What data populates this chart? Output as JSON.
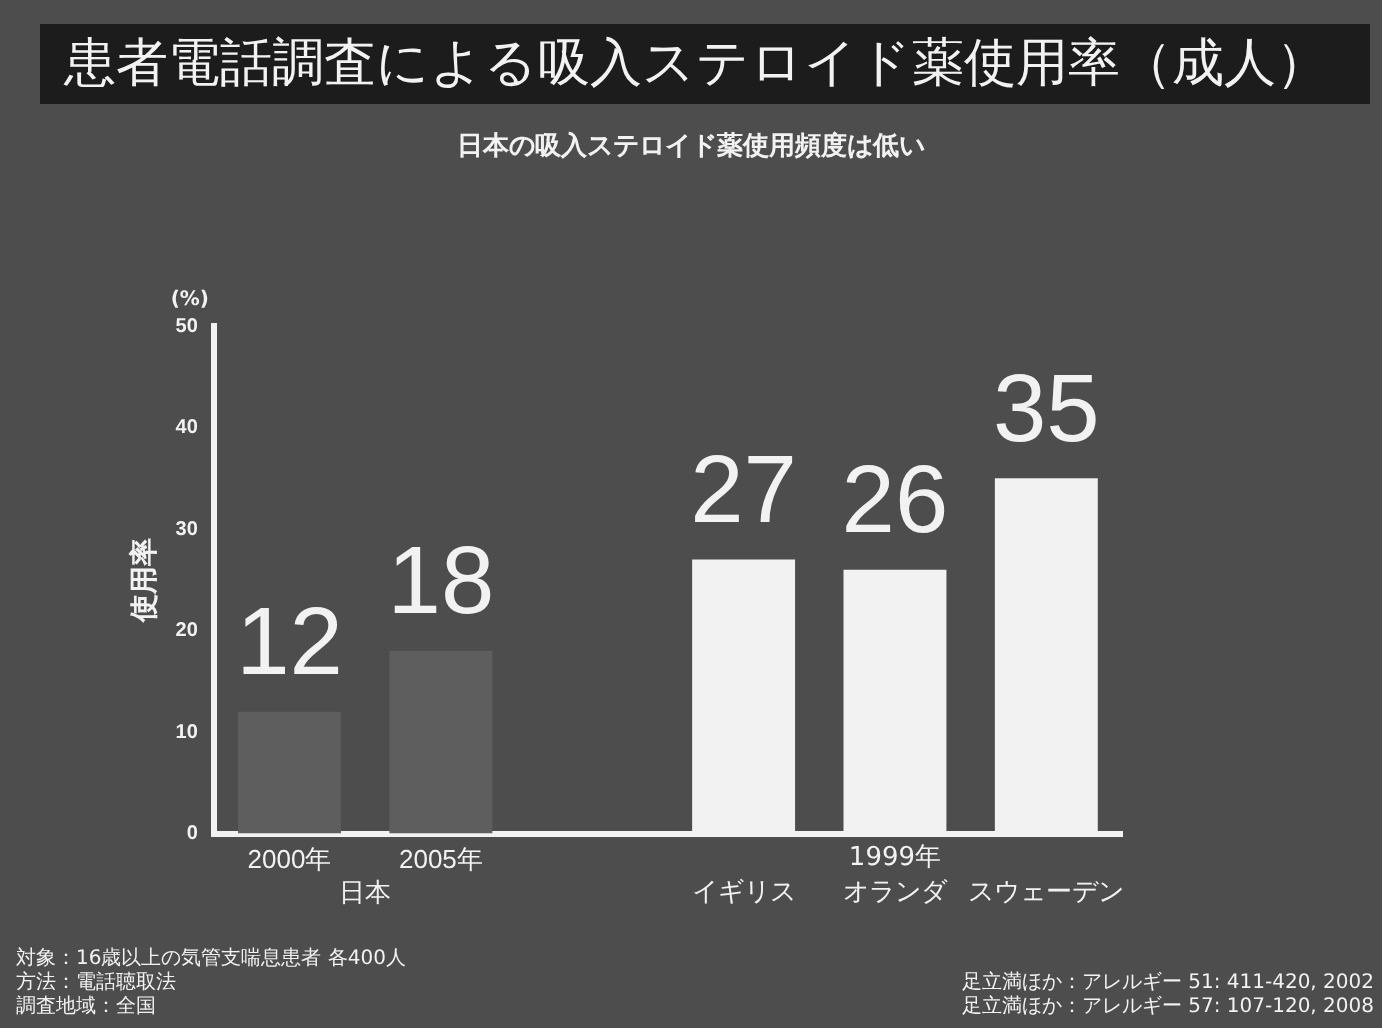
{
  "chart_data": {
    "type": "bar",
    "title": "患者電話調査による吸入ステロイド薬使用率（成人）",
    "subtitle": "日本の吸入ステロイド薬使用頻度は低い",
    "ylabel": "使用率",
    "categories": [
      "2000年",
      "2005年",
      null,
      "イギリス",
      "オランダ",
      "スウェーデン"
    ],
    "values": [
      12,
      18,
      null,
      27,
      26,
      35
    ],
    "colors": [
      "#5e5e5e",
      "#5e5e5e",
      "#5e5e5e",
      "#f2f2f2",
      "#f2f2f2",
      "#f2f2f2"
    ],
    "ylim": [
      0,
      50
    ],
    "yticks": [
      0,
      10,
      20,
      30,
      40,
      50
    ],
    "grid": false,
    "legend": false,
    "data_labels": true,
    "annotations": [
      "(%)",
      "日本",
      "1999年",
      "対象：16歳以上の気管支喘息患者 各400人",
      "方法：電話聴取法",
      "調査地域：全国",
      "足立満ほか：アレルギー 51: 411-420, 2002",
      "足立満ほか：アレルギー 57: 107-120, 2008"
    ]
  }
}
